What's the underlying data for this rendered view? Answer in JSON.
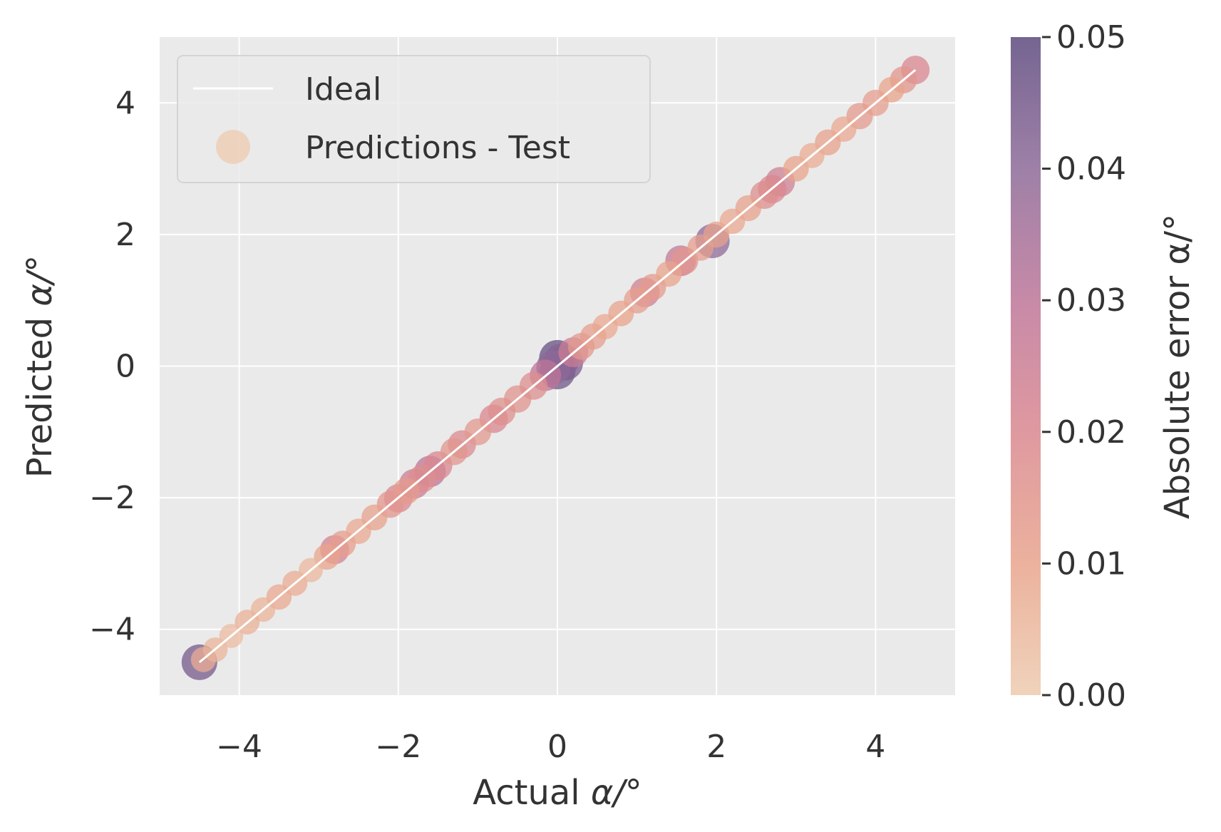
{
  "chart_data": {
    "type": "scatter",
    "xlabel_prefix": "Actual ",
    "xlabel_symbol": "α/°",
    "ylabel_prefix": "Predicted ",
    "ylabel_symbol": "α/°",
    "xlim": [
      -5,
      5
    ],
    "ylim": [
      -5,
      5
    ],
    "x_ticks": [
      -4,
      -2,
      0,
      2,
      4
    ],
    "y_ticks": [
      -4,
      -2,
      0,
      2,
      4
    ],
    "x_tick_labels": [
      "−4",
      "−2",
      "0",
      "2",
      "4"
    ],
    "y_tick_labels": [
      "−4",
      "−2",
      "0",
      "2",
      "4"
    ],
    "grid": true,
    "legend_position": "upper-left",
    "legend": [
      "Ideal",
      "Predictions - Test"
    ],
    "ideal_line": {
      "x": [
        -4.5,
        4.5
      ],
      "y": [
        -4.5,
        4.5
      ],
      "color": "#ffffff"
    },
    "colorbar": {
      "label": "Absolute error α/°",
      "min": 0.0,
      "max": 0.05,
      "ticks": [
        0.0,
        0.01,
        0.02,
        0.03,
        0.04,
        0.05
      ],
      "tick_labels": [
        "0.00",
        "0.01",
        "0.02",
        "0.03",
        "0.04",
        "0.05"
      ],
      "colormap": [
        "#edcbaf",
        "#e8a48c",
        "#d9878f",
        "#bd7598",
        "#8d6a98",
        "#5d4a7e"
      ]
    },
    "series": [
      {
        "name": "Predictions - Test",
        "points": [
          {
            "x": -4.5,
            "y": -4.5,
            "err": 0.045
          },
          {
            "x": -4.45,
            "y": -4.46,
            "err": 0.008
          },
          {
            "x": -4.3,
            "y": -4.31,
            "err": 0.006
          },
          {
            "x": -4.1,
            "y": -4.1,
            "err": 0.004
          },
          {
            "x": -3.9,
            "y": -3.89,
            "err": 0.007
          },
          {
            "x": -3.7,
            "y": -3.7,
            "err": 0.006
          },
          {
            "x": -3.5,
            "y": -3.51,
            "err": 0.009
          },
          {
            "x": -3.3,
            "y": -3.3,
            "err": 0.008
          },
          {
            "x": -3.1,
            "y": -3.1,
            "err": 0.005
          },
          {
            "x": -2.9,
            "y": -2.9,
            "err": 0.01
          },
          {
            "x": -2.8,
            "y": -2.79,
            "err": 0.022
          },
          {
            "x": -2.7,
            "y": -2.7,
            "err": 0.012
          },
          {
            "x": -2.5,
            "y": -2.51,
            "err": 0.009
          },
          {
            "x": -2.3,
            "y": -2.3,
            "err": 0.011
          },
          {
            "x": -2.1,
            "y": -2.1,
            "err": 0.015
          },
          {
            "x": -2.0,
            "y": -2.01,
            "err": 0.02
          },
          {
            "x": -1.9,
            "y": -1.9,
            "err": 0.013
          },
          {
            "x": -1.8,
            "y": -1.79,
            "err": 0.025
          },
          {
            "x": -1.7,
            "y": -1.71,
            "err": 0.018
          },
          {
            "x": -1.6,
            "y": -1.6,
            "err": 0.03
          },
          {
            "x": -1.5,
            "y": -1.51,
            "err": 0.02
          },
          {
            "x": -1.3,
            "y": -1.3,
            "err": 0.015
          },
          {
            "x": -1.2,
            "y": -1.19,
            "err": 0.019
          },
          {
            "x": -1.0,
            "y": -1.0,
            "err": 0.014
          },
          {
            "x": -0.8,
            "y": -0.8,
            "err": 0.02
          },
          {
            "x": -0.7,
            "y": -0.69,
            "err": 0.017
          },
          {
            "x": -0.5,
            "y": -0.5,
            "err": 0.016
          },
          {
            "x": -0.3,
            "y": -0.3,
            "err": 0.018
          },
          {
            "x": -0.15,
            "y": -0.14,
            "err": 0.03
          },
          {
            "x": -0.05,
            "y": -0.02,
            "err": 0.04
          },
          {
            "x": 0.0,
            "y": -0.08,
            "err": 0.046
          },
          {
            "x": 0.0,
            "y": 0.12,
            "err": 0.048
          },
          {
            "x": 0.05,
            "y": 0.08,
            "err": 0.042
          },
          {
            "x": 0.1,
            "y": 0.05,
            "err": 0.044
          },
          {
            "x": 0.2,
            "y": 0.21,
            "err": 0.025
          },
          {
            "x": 0.3,
            "y": 0.3,
            "err": 0.014
          },
          {
            "x": 0.45,
            "y": 0.45,
            "err": 0.012
          },
          {
            "x": 0.6,
            "y": 0.6,
            "err": 0.009
          },
          {
            "x": 0.8,
            "y": 0.8,
            "err": 0.01
          },
          {
            "x": 1.0,
            "y": 1.0,
            "err": 0.012
          },
          {
            "x": 1.1,
            "y": 1.12,
            "err": 0.024
          },
          {
            "x": 1.2,
            "y": 1.2,
            "err": 0.013
          },
          {
            "x": 1.4,
            "y": 1.4,
            "err": 0.01
          },
          {
            "x": 1.55,
            "y": 1.6,
            "err": 0.028
          },
          {
            "x": 1.6,
            "y": 1.6,
            "err": 0.015
          },
          {
            "x": 1.8,
            "y": 1.8,
            "err": 0.012
          },
          {
            "x": 1.95,
            "y": 1.9,
            "err": 0.04
          },
          {
            "x": 2.0,
            "y": 2.0,
            "err": 0.011
          },
          {
            "x": 2.2,
            "y": 2.2,
            "err": 0.009
          },
          {
            "x": 2.4,
            "y": 2.4,
            "err": 0.011
          },
          {
            "x": 2.6,
            "y": 2.6,
            "err": 0.018
          },
          {
            "x": 2.8,
            "y": 2.8,
            "err": 0.024
          },
          {
            "x": 2.7,
            "y": 2.69,
            "err": 0.02
          },
          {
            "x": 3.0,
            "y": 3.0,
            "err": 0.01
          },
          {
            "x": 3.2,
            "y": 3.2,
            "err": 0.008
          },
          {
            "x": 3.4,
            "y": 3.4,
            "err": 0.011
          },
          {
            "x": 3.6,
            "y": 3.6,
            "err": 0.009
          },
          {
            "x": 3.8,
            "y": 3.8,
            "err": 0.013
          },
          {
            "x": 4.0,
            "y": 4.0,
            "err": 0.012
          },
          {
            "x": 4.2,
            "y": 4.2,
            "err": 0.01
          },
          {
            "x": 4.35,
            "y": 4.35,
            "err": 0.015
          },
          {
            "x": 4.5,
            "y": 4.5,
            "err": 0.02
          }
        ]
      }
    ]
  }
}
